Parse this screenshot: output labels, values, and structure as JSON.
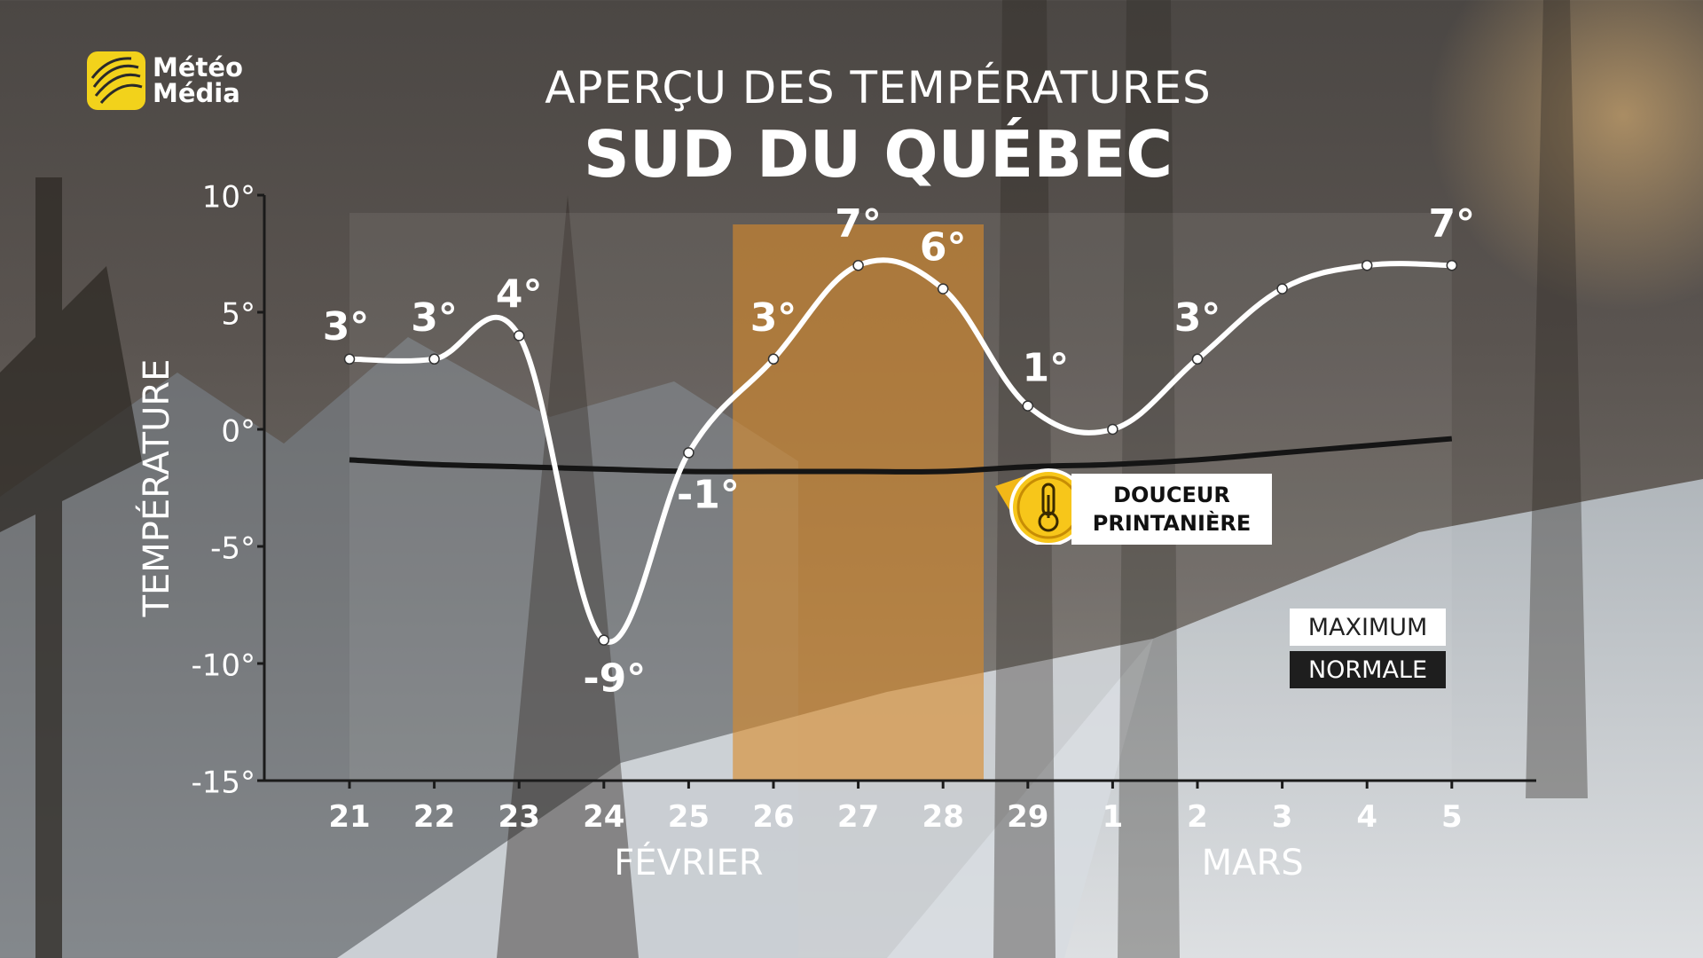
{
  "logo": {
    "line1": "Météo",
    "line2": "Média"
  },
  "header": {
    "title": "APERÇU DES TEMPÉRATURES",
    "subtitle": "SUD DU QUÉBEC"
  },
  "callout": {
    "line1": "DOUCEUR",
    "line2": "PRINTANIÈRE",
    "icon": "thermometer-icon"
  },
  "legend": {
    "maximum": "MAXIMUM",
    "normale": "NORMALE"
  },
  "colors": {
    "highlight": "#d98a2b",
    "max_line": "#ffffff",
    "normal_line": "#151515",
    "logo_yellow": "#f2d21b"
  },
  "chart_data": {
    "type": "line",
    "ylabel": "TEMPÉRATURE",
    "ylim": [
      -15,
      10
    ],
    "yticks": [
      "10°",
      "5°",
      "0°",
      "-5°",
      "-10°",
      "-15°"
    ],
    "ytick_values": [
      10,
      5,
      0,
      -5,
      -10,
      -15
    ],
    "categories": [
      "21",
      "22",
      "23",
      "24",
      "25",
      "26",
      "27",
      "28",
      "29",
      "1",
      "2",
      "3",
      "4",
      "5"
    ],
    "month_labels": [
      {
        "label": "FÉVRIER",
        "center_index": 4
      },
      {
        "label": "MARS",
        "center_index": 10.65
      }
    ],
    "highlight_range": [
      5,
      7
    ],
    "series": [
      {
        "name": "MAXIMUM",
        "values": [
          3,
          3,
          4,
          -9,
          -1,
          3,
          7,
          6,
          1,
          0,
          3,
          6,
          7,
          7
        ],
        "labels": [
          "3°",
          "3°",
          "4°",
          "-9°",
          "-1°",
          "3°",
          "7°",
          "6°",
          "1°",
          "",
          "3°",
          "",
          "",
          "7°"
        ]
      },
      {
        "name": "NORMALE",
        "values": [
          -1.3,
          -1.5,
          -1.6,
          -1.7,
          -1.8,
          -1.8,
          -1.8,
          -1.8,
          -1.6,
          -1.5,
          -1.3,
          -1.0,
          -0.7,
          -0.4
        ]
      }
    ]
  }
}
